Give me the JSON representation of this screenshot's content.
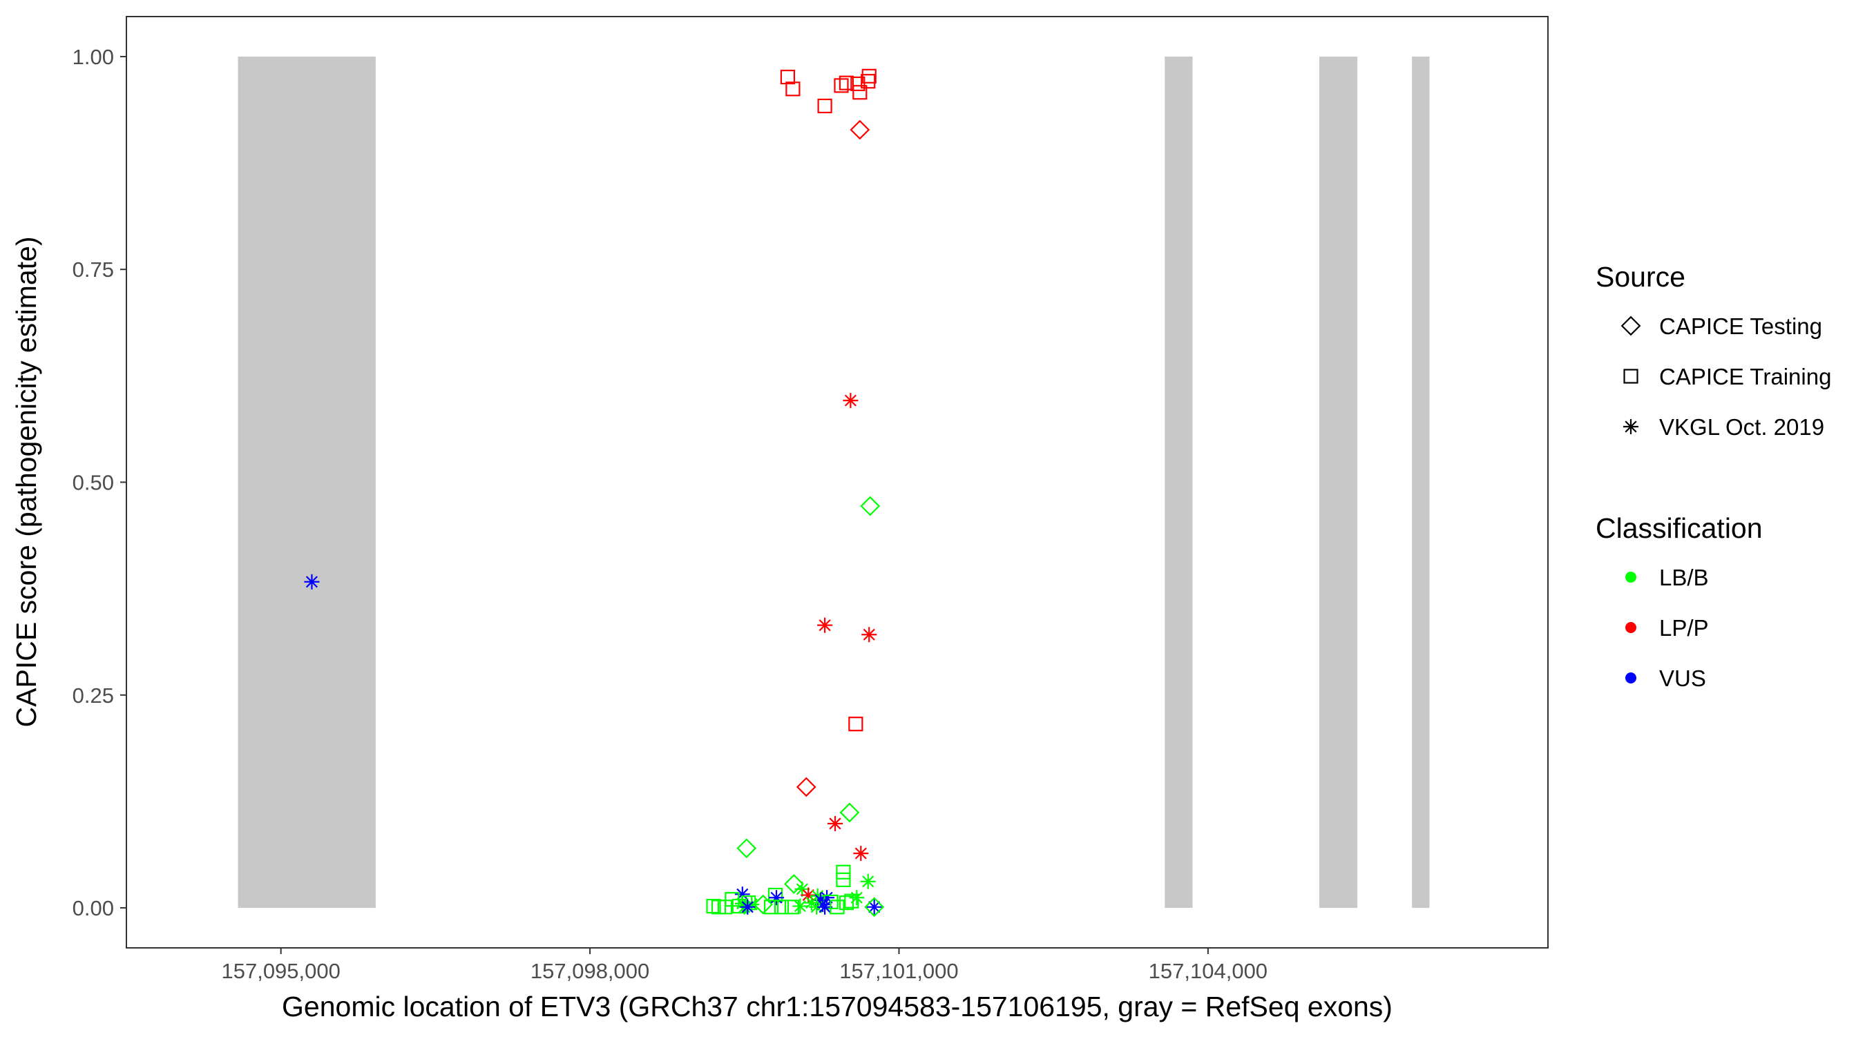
{
  "chart_data": {
    "type": "scatter",
    "xlabel": "Genomic location of ETV3 (GRCh37 chr1:157094583-157106195, gray = RefSeq exons)",
    "ylabel": "CAPICE score (pathogenicity estimate)",
    "xlim": [
      157093500,
      157107300
    ],
    "ylim": [
      -0.047,
      1.047
    ],
    "x_ticks": [
      157095000,
      157098000,
      157101000,
      157104000
    ],
    "x_tick_labels": [
      "157,095,000",
      "157,098,000",
      "157,101,000",
      "157,104,000"
    ],
    "y_ticks": [
      0,
      0.25,
      0.5,
      0.75,
      1.0
    ],
    "y_tick_labels": [
      "0.00",
      "0.25",
      "0.50",
      "0.75",
      "1.00"
    ],
    "exons": [
      {
        "start": 157094583,
        "end": 157095920
      },
      {
        "start": 157103580,
        "end": 157103850
      },
      {
        "start": 157105080,
        "end": 157105450
      },
      {
        "start": 157105980,
        "end": 157106150
      }
    ],
    "exon_color": "#c8c8c8",
    "grid": false,
    "legend_position": "right",
    "legends": {
      "source": {
        "title": "Source",
        "entries": [
          "CAPICE Testing",
          "CAPICE Training",
          "VKGL Oct. 2019"
        ]
      },
      "classification": {
        "title": "Classification",
        "entries": [
          "LB/B",
          "LP/P",
          "VUS"
        ]
      }
    },
    "colors": {
      "LB/B": "#00ff00",
      "LP/P": "#ff0000",
      "VUS": "#0000ff"
    },
    "shapes": {
      "CAPICE Testing": "diamond",
      "CAPICE Training": "square",
      "VKGL Oct. 2019": "asterisk"
    },
    "points": [
      {
        "x": 157099920,
        "y": 0.976,
        "source": "CAPICE Training",
        "class": "LP/P"
      },
      {
        "x": 157099970,
        "y": 0.962,
        "source": "CAPICE Training",
        "class": "LP/P"
      },
      {
        "x": 157100280,
        "y": 0.942,
        "source": "CAPICE Training",
        "class": "LP/P"
      },
      {
        "x": 157100440,
        "y": 0.966,
        "source": "CAPICE Training",
        "class": "LP/P"
      },
      {
        "x": 157100490,
        "y": 0.969,
        "source": "CAPICE Training",
        "class": "LP/P"
      },
      {
        "x": 157100600,
        "y": 0.968,
        "source": "CAPICE Training",
        "class": "LP/P"
      },
      {
        "x": 157100620,
        "y": 0.958,
        "source": "CAPICE Training",
        "class": "LP/P"
      },
      {
        "x": 157100700,
        "y": 0.971,
        "source": "CAPICE Training",
        "class": "LP/P"
      },
      {
        "x": 157100710,
        "y": 0.977,
        "source": "CAPICE Training",
        "class": "LP/P"
      },
      {
        "x": 157100620,
        "y": 0.914,
        "source": "CAPICE Testing",
        "class": "LP/P"
      },
      {
        "x": 157100530,
        "y": 0.596,
        "source": "VKGL Oct. 2019",
        "class": "LP/P"
      },
      {
        "x": 157100720,
        "y": 0.472,
        "source": "CAPICE Testing",
        "class": "LB/B"
      },
      {
        "x": 157095300,
        "y": 0.383,
        "source": "VKGL Oct. 2019",
        "class": "VUS"
      },
      {
        "x": 157100280,
        "y": 0.332,
        "source": "VKGL Oct. 2019",
        "class": "LP/P"
      },
      {
        "x": 157100710,
        "y": 0.321,
        "source": "VKGL Oct. 2019",
        "class": "LP/P"
      },
      {
        "x": 157100580,
        "y": 0.216,
        "source": "CAPICE Training",
        "class": "LP/P"
      },
      {
        "x": 157100100,
        "y": 0.142,
        "source": "CAPICE Testing",
        "class": "LP/P"
      },
      {
        "x": 157100520,
        "y": 0.112,
        "source": "CAPICE Testing",
        "class": "LB/B"
      },
      {
        "x": 157100380,
        "y": 0.099,
        "source": "VKGL Oct. 2019",
        "class": "LP/P"
      },
      {
        "x": 157099520,
        "y": 0.07,
        "source": "CAPICE Testing",
        "class": "LB/B"
      },
      {
        "x": 157100630,
        "y": 0.064,
        "source": "VKGL Oct. 2019",
        "class": "LP/P"
      },
      {
        "x": 157100460,
        "y": 0.042,
        "source": "CAPICE Training",
        "class": "LB/B"
      },
      {
        "x": 157100460,
        "y": 0.033,
        "source": "CAPICE Training",
        "class": "LB/B"
      },
      {
        "x": 157100700,
        "y": 0.031,
        "source": "VKGL Oct. 2019",
        "class": "LB/B"
      },
      {
        "x": 157099980,
        "y": 0.028,
        "source": "CAPICE Testing",
        "class": "LB/B"
      },
      {
        "x": 157100060,
        "y": 0.022,
        "source": "VKGL Oct. 2019",
        "class": "LB/B"
      },
      {
        "x": 157099480,
        "y": 0.016,
        "source": "VKGL Oct. 2019",
        "class": "VUS"
      },
      {
        "x": 157099800,
        "y": 0.015,
        "source": "CAPICE Training",
        "class": "LB/B"
      },
      {
        "x": 157100120,
        "y": 0.015,
        "source": "VKGL Oct. 2019",
        "class": "LP/P"
      },
      {
        "x": 157100210,
        "y": 0.014,
        "source": "VKGL Oct. 2019",
        "class": "LB/B"
      },
      {
        "x": 157099810,
        "y": 0.012,
        "source": "VKGL Oct. 2019",
        "class": "VUS"
      },
      {
        "x": 157100300,
        "y": 0.012,
        "source": "VKGL Oct. 2019",
        "class": "VUS"
      },
      {
        "x": 157100590,
        "y": 0.012,
        "source": "VKGL Oct. 2019",
        "class": "LB/B"
      },
      {
        "x": 157099380,
        "y": 0.01,
        "source": "CAPICE Training",
        "class": "LB/B"
      },
      {
        "x": 157100240,
        "y": 0.009,
        "source": "VKGL Oct. 2019",
        "class": "VUS"
      },
      {
        "x": 157100540,
        "y": 0.008,
        "source": "CAPICE Training",
        "class": "LB/B"
      },
      {
        "x": 157100340,
        "y": 0.007,
        "source": "CAPICE Training",
        "class": "LB/B"
      },
      {
        "x": 157100490,
        "y": 0.006,
        "source": "CAPICE Training",
        "class": "LB/B"
      },
      {
        "x": 157099540,
        "y": 0.006,
        "source": "CAPICE Training",
        "class": "LB/B"
      },
      {
        "x": 157099480,
        "y": 0.005,
        "source": "VKGL Oct. 2019",
        "class": "LB/B"
      },
      {
        "x": 157100150,
        "y": 0.006,
        "source": "VKGL Oct. 2019",
        "class": "LB/B"
      },
      {
        "x": 157099570,
        "y": 0.004,
        "source": "VKGL Oct. 2019",
        "class": "LB/B"
      },
      {
        "x": 157099680,
        "y": 0.004,
        "source": "CAPICE Testing",
        "class": "LB/B"
      },
      {
        "x": 157100260,
        "y": 0.004,
        "source": "VKGL Oct. 2019",
        "class": "VUS"
      },
      {
        "x": 157099200,
        "y": 0.002,
        "source": "CAPICE Training",
        "class": "LB/B"
      },
      {
        "x": 157099250,
        "y": 0.001,
        "source": "CAPICE Training",
        "class": "LB/B"
      },
      {
        "x": 157099310,
        "y": 0.001,
        "source": "CAPICE Training",
        "class": "LB/B"
      },
      {
        "x": 157099450,
        "y": 0.002,
        "source": "CAPICE Training",
        "class": "LB/B"
      },
      {
        "x": 157099500,
        "y": 0.001,
        "source": "VKGL Oct. 2019",
        "class": "LB/B"
      },
      {
        "x": 157099530,
        "y": 0.001,
        "source": "VKGL Oct. 2019",
        "class": "VUS"
      },
      {
        "x": 157099760,
        "y": 0.001,
        "source": "CAPICE Training",
        "class": "LB/B"
      },
      {
        "x": 157099860,
        "y": 0.001,
        "source": "CAPICE Training",
        "class": "LB/B"
      },
      {
        "x": 157099960,
        "y": 0.001,
        "source": "CAPICE Training",
        "class": "LB/B"
      },
      {
        "x": 157100040,
        "y": 0.002,
        "source": "VKGL Oct. 2019",
        "class": "LB/B"
      },
      {
        "x": 157100200,
        "y": 0.001,
        "source": "VKGL Oct. 2019",
        "class": "LB/B"
      },
      {
        "x": 157100280,
        "y": 0.001,
        "source": "VKGL Oct. 2019",
        "class": "VUS"
      },
      {
        "x": 157100400,
        "y": 0.001,
        "source": "CAPICE Training",
        "class": "LB/B"
      },
      {
        "x": 157100760,
        "y": 0.001,
        "source": "VKGL Oct. 2019",
        "class": "VUS"
      },
      {
        "x": 157100760,
        "y": 0.001,
        "source": "CAPICE Testing",
        "class": "LB/B"
      }
    ]
  }
}
